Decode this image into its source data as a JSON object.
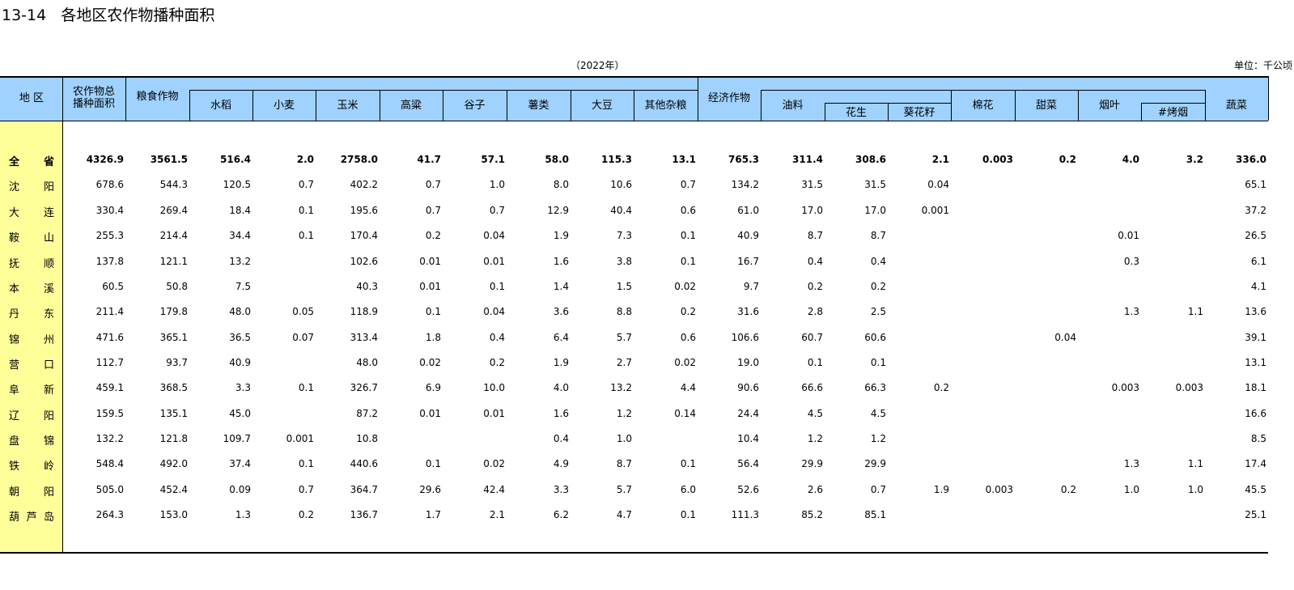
{
  "title": "13-14   各地区农作物播种面积",
  "year_note": "（2022年）",
  "unit_note": "单位：千公顷",
  "colors": {
    "header_bg": "#9fd2ff",
    "region_bg": "#ffff9a",
    "line": "#000000"
  },
  "headers": {
    "region": "地 区",
    "total": "农作物总\n播种面积",
    "grain": "粮食作物",
    "rice": "水稻",
    "wheat": "小麦",
    "corn": "玉米",
    "sorghum": "高粱",
    "millet": "谷子",
    "tubers": "薯类",
    "soybean": "大豆",
    "other_grain": "其他杂粮",
    "economic": "经济作物",
    "oilseed": "油料",
    "peanut": "花生",
    "sunflower": "葵花籽",
    "cotton": "棉花",
    "beet": "甜菜",
    "tobacco": "烟叶",
    "flue_tobacco": "#烤烟",
    "vegetables": "蔬菜"
  },
  "rows": [
    {
      "region": "全  省",
      "values": [
        "4326.9",
        "3561.5",
        "516.4",
        "2.0",
        "2758.0",
        "41.7",
        "57.1",
        "58.0",
        "115.3",
        "13.1",
        "765.3",
        "311.4",
        "308.6",
        "2.1",
        "0.003",
        "0.2",
        "4.0",
        "3.2",
        "336.0"
      ]
    },
    {
      "region": "沈  阳",
      "values": [
        "678.6",
        "544.3",
        "120.5",
        "0.7",
        "402.2",
        "0.7",
        "1.0",
        "8.0",
        "10.6",
        "0.7",
        "134.2",
        "31.5",
        "31.5",
        "0.04",
        "",
        "",
        "",
        "",
        "65.1"
      ]
    },
    {
      "region": "大  连",
      "values": [
        "330.4",
        "269.4",
        "18.4",
        "0.1",
        "195.6",
        "0.7",
        "0.7",
        "12.9",
        "40.4",
        "0.6",
        "61.0",
        "17.0",
        "17.0",
        "0.001",
        "",
        "",
        "",
        "",
        "37.2"
      ]
    },
    {
      "region": "鞍  山",
      "values": [
        "255.3",
        "214.4",
        "34.4",
        "0.1",
        "170.4",
        "0.2",
        "0.04",
        "1.9",
        "7.3",
        "0.1",
        "40.9",
        "8.7",
        "8.7",
        "",
        "",
        "",
        "0.01",
        "",
        "26.5"
      ]
    },
    {
      "region": "抚  顺",
      "values": [
        "137.8",
        "121.1",
        "13.2",
        "",
        "102.6",
        "0.01",
        "0.01",
        "1.6",
        "3.8",
        "0.1",
        "16.7",
        "0.4",
        "0.4",
        "",
        "",
        "",
        "0.3",
        "",
        "6.1"
      ]
    },
    {
      "region": "本  溪",
      "values": [
        "60.5",
        "50.8",
        "7.5",
        "",
        "40.3",
        "0.01",
        "0.1",
        "1.4",
        "1.5",
        "0.02",
        "9.7",
        "0.2",
        "0.2",
        "",
        "",
        "",
        "",
        "",
        "4.1"
      ]
    },
    {
      "region": "丹  东",
      "values": [
        "211.4",
        "179.8",
        "48.0",
        "0.05",
        "118.9",
        "0.1",
        "0.04",
        "3.6",
        "8.8",
        "0.2",
        "31.6",
        "2.8",
        "2.5",
        "",
        "",
        "",
        "1.3",
        "1.1",
        "13.6"
      ]
    },
    {
      "region": "锦  州",
      "values": [
        "471.6",
        "365.1",
        "36.5",
        "0.07",
        "313.4",
        "1.8",
        "0.4",
        "6.4",
        "5.7",
        "0.6",
        "106.6",
        "60.7",
        "60.6",
        "",
        "",
        "0.04",
        "",
        "",
        "39.1"
      ]
    },
    {
      "region": "营  口",
      "values": [
        "112.7",
        "93.7",
        "40.9",
        "",
        "48.0",
        "0.02",
        "0.2",
        "1.9",
        "2.7",
        "0.02",
        "19.0",
        "0.1",
        "0.1",
        "",
        "",
        "",
        "",
        "",
        "13.1"
      ]
    },
    {
      "region": "阜  新",
      "values": [
        "459.1",
        "368.5",
        "3.3",
        "0.1",
        "326.7",
        "6.9",
        "10.0",
        "4.0",
        "13.2",
        "4.4",
        "90.6",
        "66.6",
        "66.3",
        "0.2",
        "",
        "",
        "0.003",
        "0.003",
        "18.1"
      ]
    },
    {
      "region": "辽  阳",
      "values": [
        "159.5",
        "135.1",
        "45.0",
        "",
        "87.2",
        "0.01",
        "0.01",
        "1.6",
        "1.2",
        "0.14",
        "24.4",
        "4.5",
        "4.5",
        "",
        "",
        "",
        "",
        "",
        "16.6"
      ]
    },
    {
      "region": "盘  锦",
      "values": [
        "132.2",
        "121.8",
        "109.7",
        "0.001",
        "10.8",
        "",
        "",
        "0.4",
        "1.0",
        "",
        "10.4",
        "1.2",
        "1.2",
        "",
        "",
        "",
        "",
        "",
        "8.5"
      ]
    },
    {
      "region": "铁  岭",
      "values": [
        "548.4",
        "492.0",
        "37.4",
        "0.1",
        "440.6",
        "0.1",
        "0.02",
        "4.9",
        "8.7",
        "0.1",
        "56.4",
        "29.9",
        "29.9",
        "",
        "",
        "",
        "1.3",
        "1.1",
        "17.4"
      ]
    },
    {
      "region": "朝  阳",
      "values": [
        "505.0",
        "452.4",
        "0.09",
        "0.7",
        "364.7",
        "29.6",
        "42.4",
        "3.3",
        "5.7",
        "6.0",
        "52.6",
        "2.6",
        "0.7",
        "1.9",
        "0.003",
        "0.2",
        "1.0",
        "1.0",
        "45.5"
      ]
    },
    {
      "region": "葫芦岛",
      "values": [
        "264.3",
        "153.0",
        "1.3",
        "0.2",
        "136.7",
        "1.7",
        "2.1",
        "6.2",
        "4.7",
        "0.1",
        "111.3",
        "85.2",
        "85.1",
        "",
        "",
        "",
        "",
        "",
        "25.1"
      ]
    }
  ]
}
